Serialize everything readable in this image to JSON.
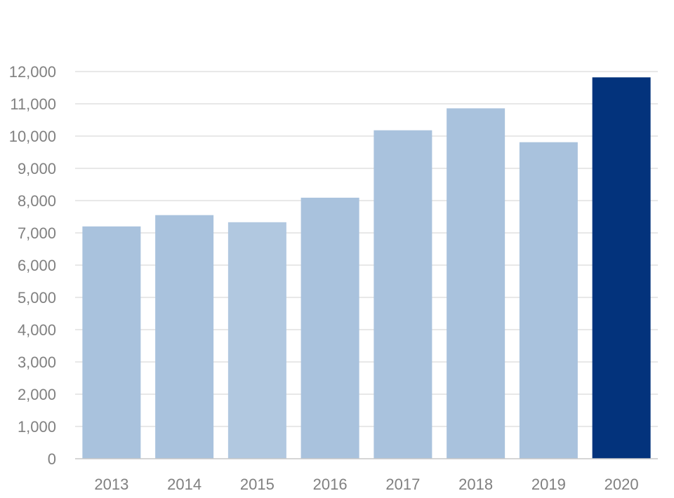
{
  "chart_data": {
    "type": "bar",
    "title": "",
    "xlabel": "",
    "ylabel": "",
    "categories": [
      "2013",
      "2014",
      "2015",
      "2016",
      "2017",
      "2018",
      "2019",
      "2020"
    ],
    "values": [
      7200,
      7550,
      7330,
      8090,
      10180,
      10860,
      9810,
      11820
    ],
    "ylim": [
      0,
      12000
    ],
    "yticks": [
      0,
      1000,
      2000,
      3000,
      4000,
      5000,
      6000,
      7000,
      8000,
      9000,
      10000,
      11000,
      12000
    ],
    "ytick_labels": [
      "0",
      "1,000",
      "2,000",
      "3,000",
      "4,000",
      "5,000",
      "6,000",
      "7,000",
      "8,000",
      "9,000",
      "10,000",
      "11,000",
      "12,000"
    ],
    "grid": true,
    "legend": "none",
    "colors": {
      "bar": "#a9c2dd",
      "bar_2015": "#b1c8e0",
      "highlight": "#03337c"
    },
    "highlight_category": "2020"
  }
}
